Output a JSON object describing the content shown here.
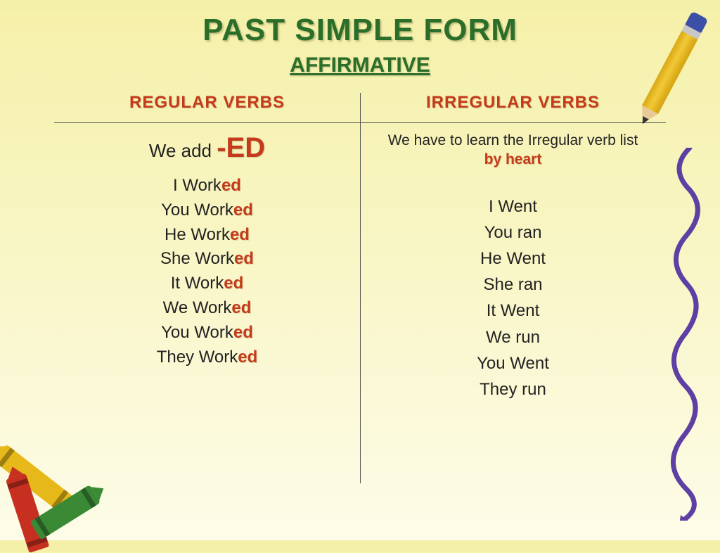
{
  "title": "PAST SIMPLE FORM",
  "subtitle": "AFFIRMATIVE",
  "colors": {
    "title_color": "#2a6e2a",
    "accent_color": "#c43a1a",
    "text_color": "#222222",
    "bg_top": "#f5f0a8",
    "bg_bottom": "#fdfce8",
    "divider": "#555555",
    "squiggle": "#5e3fa3"
  },
  "left": {
    "header": "REGULAR VERBS",
    "rule_prefix": "We add ",
    "rule_highlight": "-ED",
    "items": [
      {
        "pronoun": "I",
        "stem": "Work",
        "suffix": "ed"
      },
      {
        "pronoun": "You",
        "stem": "Work",
        "suffix": "ed"
      },
      {
        "pronoun": "He",
        "stem": "Work",
        "suffix": "ed"
      },
      {
        "pronoun": "She",
        "stem": "Work",
        "suffix": "ed"
      },
      {
        "pronoun": "It",
        "stem": "Work",
        "suffix": "ed"
      },
      {
        "pronoun": "We",
        "stem": "Work",
        "suffix": "ed"
      },
      {
        "pronoun": "You",
        "stem": "Work",
        "suffix": "ed"
      },
      {
        "pronoun": "They",
        "stem": "Work",
        "suffix": "ed"
      }
    ]
  },
  "right": {
    "header": "IRREGULAR VERBS",
    "rule_prefix": "We have to learn the Irregular verb list ",
    "rule_highlight": "by heart",
    "items": [
      "I Went",
      "You ran",
      "He Went",
      "She ran",
      "It Went",
      "We run",
      "You Went",
      "They run"
    ]
  },
  "typography": {
    "title_fontsize": 44,
    "subtitle_fontsize": 30,
    "header_fontsize": 24,
    "rule_fontsize": 26,
    "rule_highlight_fontsize": 40,
    "rule_irr_fontsize": 21,
    "list_fontsize": 24,
    "font_family": "Comic Sans MS"
  },
  "decor": {
    "pencil_colors": {
      "eraser": "#3b4fa6",
      "ferrule": "#c7c7c7",
      "body": "#f2c938",
      "wood": "#e8c998",
      "lead": "#333333"
    },
    "crayon_colors": {
      "yellow": "#e6b81a",
      "red": "#c73020",
      "green": "#3a8a35"
    }
  }
}
